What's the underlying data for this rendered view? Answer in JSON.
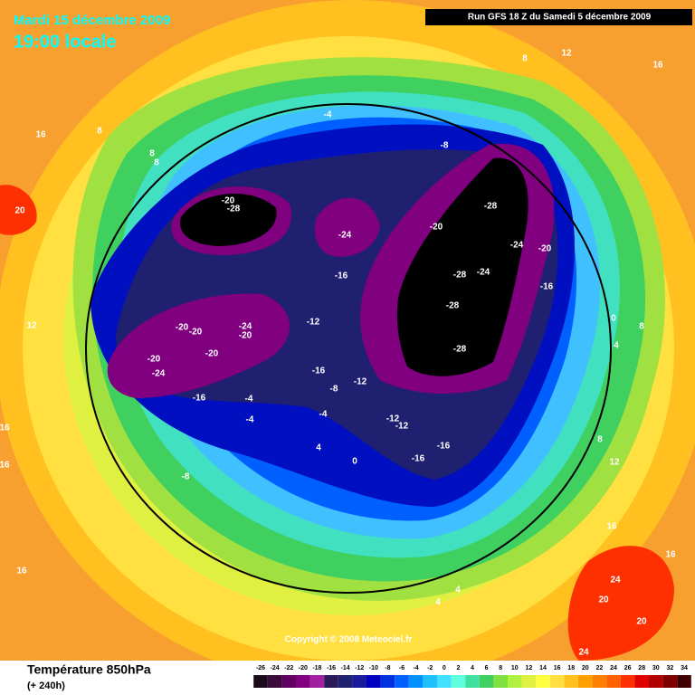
{
  "header": {
    "date": "Mardi 15 décembre 2009",
    "time": "19:00 locale",
    "run": "Run GFS 18 Z du Samedi 5 décembre 2009"
  },
  "footer": {
    "title": "Température 850hPa",
    "lead": "(+ 240h)",
    "copyright": "Copyright © 2008 Meteociel.fr"
  },
  "scale": {
    "ticks": [
      -26,
      -24,
      -22,
      -20,
      -18,
      -16,
      -14,
      -12,
      -10,
      -8,
      -6,
      -4,
      -2,
      0,
      2,
      4,
      6,
      8,
      10,
      12,
      14,
      16,
      18,
      20,
      22,
      24,
      26,
      28,
      30,
      32,
      34
    ],
    "colors": [
      "#1a0a1a",
      "#3a0a3a",
      "#600060",
      "#800080",
      "#a020a0",
      "#2a1a5a",
      "#202070",
      "#1a1a9a",
      "#0000c0",
      "#0030e0",
      "#0060ff",
      "#0090ff",
      "#20c0ff",
      "#40e0ff",
      "#60ffe0",
      "#40e0a0",
      "#40d060",
      "#80e040",
      "#b0f040",
      "#e0f040",
      "#ffff40",
      "#ffe040",
      "#ffc020",
      "#ffa000",
      "#ff8000",
      "#ff6000",
      "#ff3000",
      "#e00000",
      "#b00000",
      "#800000",
      "#400000"
    ]
  },
  "labels": [
    "-4",
    "-8",
    "-28",
    "-20",
    "-28",
    "-20",
    "-24",
    "-24",
    "-20",
    "-16",
    "-28",
    "-24",
    "-16",
    "-28",
    "-12",
    "-20",
    "-20",
    "-24",
    "-20",
    "-20",
    "-28",
    "-20",
    "-24",
    "-16",
    "-12",
    "-8",
    "-16",
    "-4",
    "-4",
    "-4",
    "-12",
    "-12",
    "-16",
    "-16",
    "4",
    "0",
    "-8",
    "8",
    "8",
    "8",
    "16",
    "20",
    "8",
    "12",
    "16",
    "0",
    "8",
    "4",
    "12",
    "16",
    "16",
    "8",
    "12",
    "16",
    "16",
    "16",
    "24",
    "20",
    "20",
    "24",
    "4",
    "4"
  ]
}
